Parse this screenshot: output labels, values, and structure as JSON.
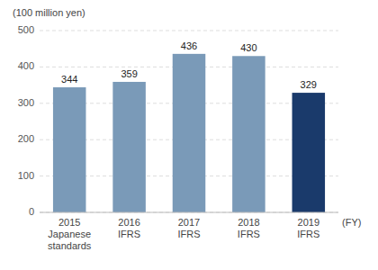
{
  "chart_data": {
    "type": "bar",
    "title": "(100 million yen)",
    "x_label": "(FY)",
    "categories": [
      "2015\nJapanese\nstandards",
      "2016\nIFRS",
      "2017\nIFRS",
      "2018\nIFRS",
      "2019\nIFRS"
    ],
    "values": [
      344,
      359,
      436,
      430,
      329
    ],
    "colors": [
      "#7a9ab8",
      "#7a9ab8",
      "#7a9ab8",
      "#7a9ab8",
      "#1a3a6b"
    ],
    "ylim": [
      0,
      500
    ],
    "yticks": [
      0,
      100,
      200,
      300,
      400,
      500
    ],
    "grid": true,
    "data_labels": true
  }
}
